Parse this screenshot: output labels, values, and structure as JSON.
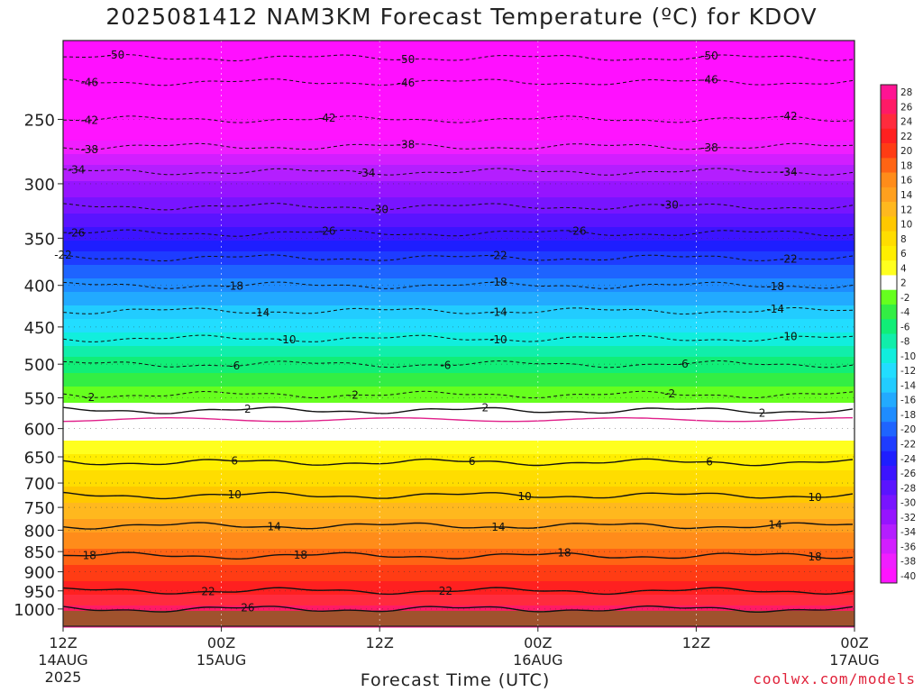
{
  "title": "2025081412 NAM3KM Forecast Temperature (ºC) for KDOV",
  "credit": "coolwx.com/models",
  "chart_data": {
    "type": "heatmap",
    "title": "2025081412 NAM3KM Forecast Temperature (ºC) for KDOV",
    "xlabel": "Forecast Time (UTC)",
    "ylabel": "",
    "y_scale": "log-pressure",
    "ylim": [
      1050,
      200
    ],
    "xlim": [
      0,
      60
    ],
    "x_ticks": [
      {
        "hour": 0,
        "line1": "12Z",
        "line2": "14AUG",
        "line3": "2025"
      },
      {
        "hour": 12,
        "line1": "00Z",
        "line2": "15AUG",
        "line3": ""
      },
      {
        "hour": 24,
        "line1": "12Z",
        "line2": "",
        "line3": ""
      },
      {
        "hour": 36,
        "line1": "00Z",
        "line2": "16AUG",
        "line3": ""
      },
      {
        "hour": 48,
        "line1": "12Z",
        "line2": "",
        "line3": ""
      },
      {
        "hour": 60,
        "line1": "00Z",
        "line2": "17AUG",
        "line3": ""
      }
    ],
    "y_ticks": [
      250,
      300,
      350,
      400,
      450,
      500,
      550,
      600,
      650,
      700,
      750,
      800,
      850,
      900,
      950,
      1000
    ],
    "temperature_profile_hpa": [
      {
        "p": 200,
        "t": -53
      },
      {
        "p": 210,
        "t": -50
      },
      {
        "p": 225,
        "t": -46
      },
      {
        "p": 250,
        "t": -42
      },
      {
        "p": 270,
        "t": -38
      },
      {
        "p": 290,
        "t": -34
      },
      {
        "p": 320,
        "t": -30
      },
      {
        "p": 345,
        "t": -26
      },
      {
        "p": 370,
        "t": -22
      },
      {
        "p": 400,
        "t": -18
      },
      {
        "p": 430,
        "t": -14
      },
      {
        "p": 465,
        "t": -10
      },
      {
        "p": 500,
        "t": -6
      },
      {
        "p": 545,
        "t": -2
      },
      {
        "p": 570,
        "t": 2
      },
      {
        "p": 605,
        "t": 2
      },
      {
        "p": 660,
        "t": 6
      },
      {
        "p": 725,
        "t": 10
      },
      {
        "p": 790,
        "t": 14
      },
      {
        "p": 860,
        "t": 18
      },
      {
        "p": 950,
        "t": 22
      },
      {
        "p": 1000,
        "t": 26
      },
      {
        "p": 1050,
        "t": 28
      }
    ],
    "contour_labels": [
      {
        "value": "-50",
        "hours": [
          4,
          26,
          49
        ]
      },
      {
        "value": "-46",
        "hours": [
          2,
          26,
          49
        ]
      },
      {
        "value": "-42",
        "hours": [
          2,
          20,
          55
        ]
      },
      {
        "value": "-38",
        "hours": [
          2,
          26,
          49
        ]
      },
      {
        "value": "-34",
        "hours": [
          1,
          23,
          55
        ]
      },
      {
        "value": "-30",
        "hours": [
          24,
          46
        ]
      },
      {
        "value": "-26",
        "hours": [
          1,
          20,
          39
        ]
      },
      {
        "value": "-22",
        "hours": [
          0,
          33,
          55
        ]
      },
      {
        "value": "-18",
        "hours": [
          13,
          33,
          54
        ]
      },
      {
        "value": "-14",
        "hours": [
          15,
          33,
          54
        ]
      },
      {
        "value": "-10",
        "hours": [
          17,
          33,
          55
        ]
      },
      {
        "value": "-6",
        "hours": [
          13,
          29,
          47
        ]
      },
      {
        "value": "-2",
        "hours": [
          2,
          22,
          46
        ]
      },
      {
        "value": "2",
        "hours": [
          14,
          32,
          53
        ]
      },
      {
        "value": "6",
        "hours": [
          13,
          31,
          49
        ]
      },
      {
        "value": "10",
        "hours": [
          13,
          35,
          57
        ]
      },
      {
        "value": "14",
        "hours": [
          16,
          33,
          54
        ]
      },
      {
        "value": "18",
        "hours": [
          2,
          18,
          38,
          57
        ]
      },
      {
        "value": "22",
        "hours": [
          11,
          29
        ]
      },
      {
        "value": "26",
        "hours": [
          14
        ]
      }
    ],
    "colorbar": {
      "labels": [
        "28",
        "26",
        "24",
        "22",
        "20",
        "18",
        "16",
        "14",
        "12",
        "10",
        "8",
        "6",
        "4",
        "2",
        "-2",
        "-4",
        "-6",
        "-8",
        "-10",
        "-12",
        "-14",
        "-16",
        "-18",
        "-20",
        "-22",
        "-24",
        "-26",
        "-28",
        "-30",
        "-32",
        "-34",
        "-36",
        "-38",
        "-40"
      ],
      "colors": [
        "#ff1493",
        "#ff1a66",
        "#ff2b3d",
        "#ff2020",
        "#ff3c14",
        "#ff6414",
        "#ff8c1a",
        "#ffa01e",
        "#ffb81e",
        "#ffc800",
        "#ffdd00",
        "#ffee00",
        "#ffff1e",
        "#ffffff",
        "#66ff1e",
        "#33ee44",
        "#11ee77",
        "#11eeaa",
        "#11eedd",
        "#22ddff",
        "#22ccff",
        "#22aaff",
        "#1e8cff",
        "#1e64ff",
        "#1e3cff",
        "#1e1eff",
        "#3c14ff",
        "#5a14ff",
        "#7814ff",
        "#9614ff",
        "#b41eff",
        "#d21eff",
        "#f01eff",
        "#ff14ff"
      ]
    },
    "ground_color": "#a0522d"
  }
}
